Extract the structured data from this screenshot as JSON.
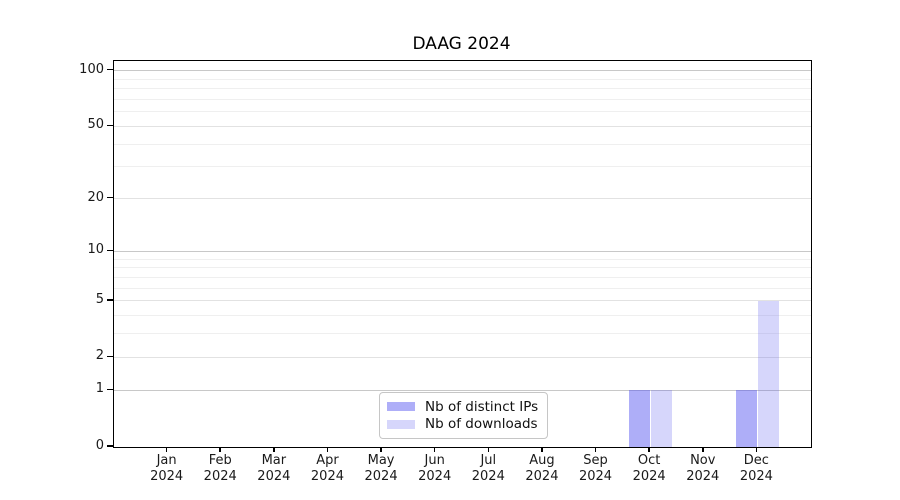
{
  "chart_data": {
    "type": "bar",
    "title": "DAAG 2024",
    "scale": "log1p",
    "categories": [
      "Jan",
      "Feb",
      "Mar",
      "Apr",
      "May",
      "Jun",
      "Jul",
      "Aug",
      "Sep",
      "Oct",
      "Nov",
      "Dec"
    ],
    "year_label": "2024",
    "series": [
      {
        "name": "Nb of distinct IPs",
        "color": "rgba(85,85,240,0.48)",
        "values": [
          0,
          0,
          0,
          0,
          0,
          0,
          0,
          0,
          0,
          1,
          0,
          1
        ]
      },
      {
        "name": "Nb of downloads",
        "color": "rgba(85,85,240,0.24)",
        "values": [
          0,
          0,
          0,
          0,
          0,
          0,
          0,
          0,
          0,
          1,
          0,
          5
        ]
      }
    ],
    "yticks": [
      0,
      1,
      2,
      5,
      10,
      20,
      50,
      100
    ],
    "minor_yticks": [
      3,
      4,
      6,
      7,
      8,
      9,
      30,
      40,
      60,
      70,
      80,
      90
    ],
    "ylim": [
      0,
      112.5
    ],
    "xlabel": "",
    "ylabel": "",
    "grid": {
      "decade_color": "#c8c8c8",
      "major_color": "#e2e2e2",
      "minor_color": "#efefef"
    },
    "legend": {
      "position": "bottom-center",
      "entries": [
        "Nb of distinct IPs",
        "Nb of downloads"
      ]
    }
  }
}
